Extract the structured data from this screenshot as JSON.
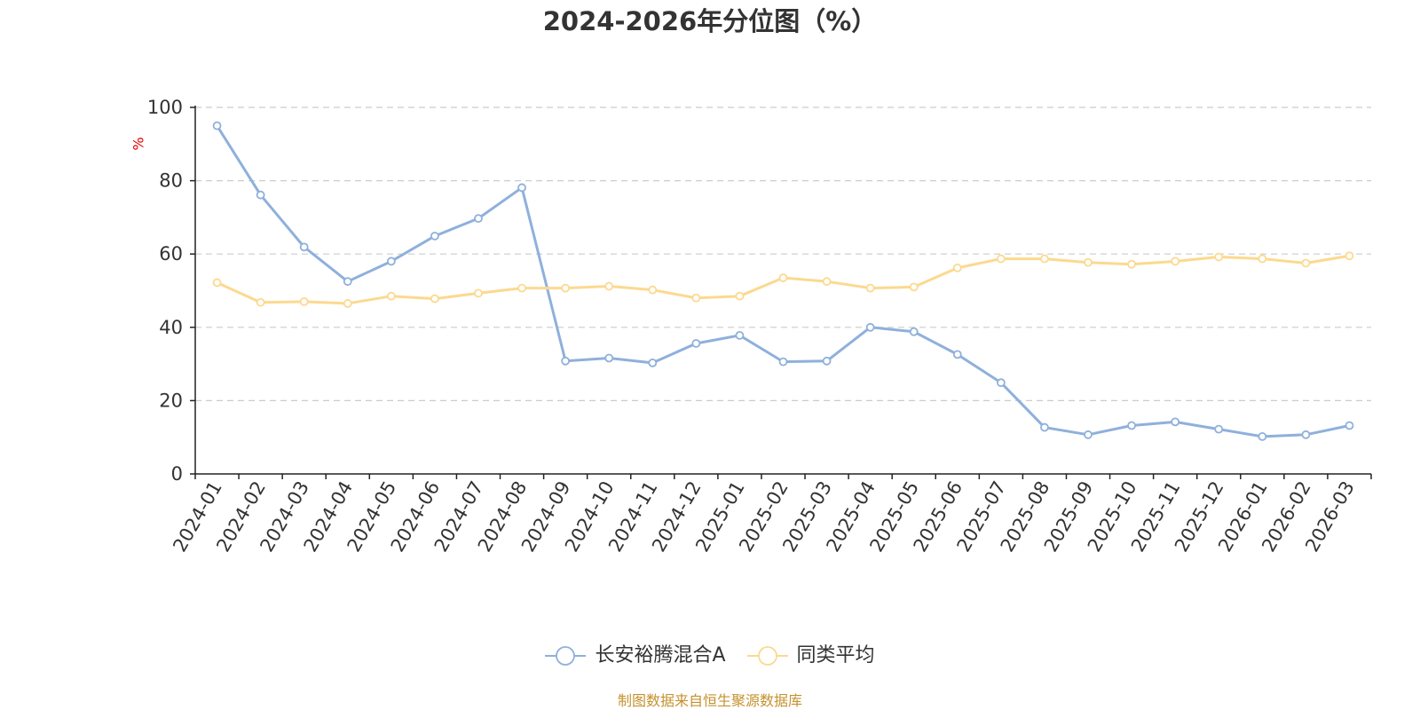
{
  "chart_data": {
    "type": "line",
    "title": "2024-2026年分位图（%）",
    "xlabel": "",
    "ylabel": "%",
    "ylim": [
      0,
      100
    ],
    "yticks": [
      0,
      20,
      40,
      60,
      80,
      100
    ],
    "grid": true,
    "legend_position": "bottom-center",
    "categories": [
      "2024-01",
      "2024-02",
      "2024-03",
      "2024-04",
      "2024-05",
      "2024-06",
      "2024-07",
      "2024-08",
      "2024-09",
      "2024-10",
      "2024-11",
      "2024-12",
      "2025-01",
      "2025-02",
      "2025-03",
      "2025-04",
      "2025-05",
      "2025-06",
      "2025-07",
      "2025-08",
      "2025-09",
      "2025-10",
      "2025-11",
      "2025-12",
      "2026-01",
      "2026-02",
      "2026-03"
    ],
    "series": [
      {
        "name": "长安裕腾混合A",
        "color": "#8fb0dc",
        "values": [
          95.0,
          76.1,
          61.9,
          52.5,
          58.0,
          64.9,
          69.7,
          78.1,
          30.8,
          31.6,
          30.3,
          35.6,
          37.8,
          30.6,
          30.8,
          40.0,
          38.8,
          32.6,
          24.9,
          12.7,
          10.7,
          13.2,
          14.2,
          12.2,
          10.2,
          10.7,
          13.2
        ]
      },
      {
        "name": "同类平均",
        "color": "#fcd98f",
        "values": [
          52.2,
          46.8,
          47.0,
          46.5,
          48.5,
          47.8,
          49.3,
          50.7,
          50.7,
          51.2,
          50.2,
          48.0,
          48.5,
          53.5,
          52.5,
          50.7,
          51.0,
          56.2,
          58.7,
          58.7,
          57.7,
          57.2,
          58.0,
          59.2,
          58.7,
          57.5,
          59.5
        ]
      }
    ]
  },
  "footer": {
    "source": "制图数据来自恒生聚源数据库"
  }
}
